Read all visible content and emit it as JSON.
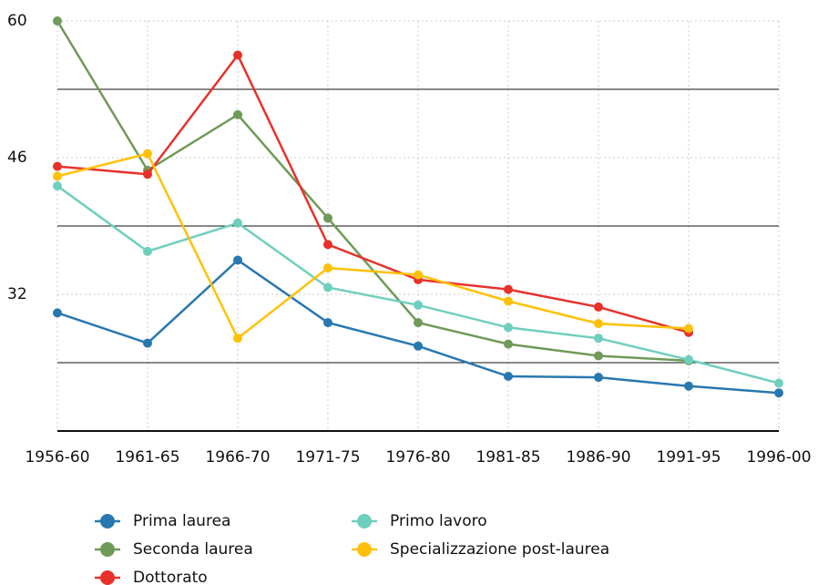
{
  "chart_data": {
    "type": "line",
    "categories": [
      "1956-60",
      "1961-65",
      "1966-70",
      "1971-75",
      "1976-80",
      "1981-85",
      "1986-90",
      "1991-95",
      "1996-00"
    ],
    "series": [
      {
        "name": "Prima laurea",
        "color": "#2878b0",
        "values": [
          30.1,
          27.0,
          35.5,
          29.1,
          26.7,
          23.6,
          23.5,
          22.6,
          21.9
        ]
      },
      {
        "name": "Seconda laurea",
        "color": "#6f9a57",
        "values": [
          60.0,
          44.7,
          50.4,
          39.8,
          29.1,
          26.9,
          25.7,
          25.2,
          null
        ]
      },
      {
        "name": "Dottorato",
        "color": "#e8312b",
        "values": [
          45.1,
          44.3,
          56.5,
          37.1,
          33.5,
          32.5,
          30.7,
          28.1,
          null
        ]
      },
      {
        "name": "Primo lavoro",
        "color": "#6fcfbe",
        "values": [
          43.1,
          36.4,
          39.3,
          32.7,
          30.9,
          28.6,
          27.5,
          25.3,
          22.9
        ]
      },
      {
        "name": "Specializzazione post-laurea",
        "color": "#ffc107",
        "values": [
          44.1,
          46.4,
          27.5,
          34.7,
          34.0,
          31.3,
          29.0,
          28.5,
          null
        ]
      }
    ],
    "ylim": [
      18,
      60
    ],
    "yticks": [
      32,
      46,
      60
    ],
    "yminor": [
      25,
      39,
      53
    ],
    "grid": true
  }
}
